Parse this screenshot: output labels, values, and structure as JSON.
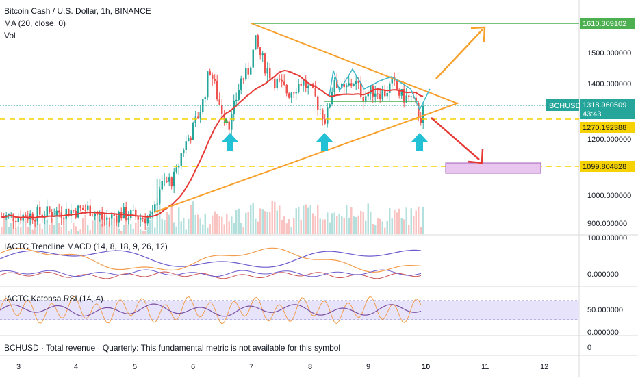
{
  "header": {
    "symbol_title": "Bitcoin Cash / U.S. Dollar, 1h, BINANCE",
    "ma_label": "MA (20, close, 0)",
    "vol_label": "Vol"
  },
  "panels": {
    "macd_title": "IACTC Trendline MACD (14, 8, 18, 9, 26, 12)",
    "rsi_title": "IACTC Katonsa RSI (14, 4)",
    "revenue_title": "BCHUSD · Total revenue · Quarterly: This fundamental metric is not available for this symbol"
  },
  "price_axis": {
    "ticks": [
      "1500.000000",
      "1400.000000",
      "1200.000000",
      "1000.000000",
      "900.000000"
    ],
    "levels": {
      "top": "1610.309102",
      "support": "1270.192388",
      "target": "1099.804828"
    },
    "current_symbol": "BCHUSD",
    "current_price": "1318.960509",
    "countdown": "43:43"
  },
  "macd_axis": {
    "ticks": [
      "100.000000",
      "0.000000"
    ]
  },
  "rsi_axis": {
    "ticks": [
      "50.000000",
      "0.000000"
    ]
  },
  "revenue_axis": {
    "ticks": [
      "0"
    ]
  },
  "time_axis": {
    "ticks": [
      "3",
      "4",
      "5",
      "6",
      "7",
      "8",
      "9",
      "10",
      "11",
      "12"
    ]
  },
  "colors": {
    "up": "#26a69a",
    "down": "#ef5350",
    "ma": "#e53935",
    "triangle": "#f7a02c",
    "level_green": "#4caf50",
    "level_yellow": "#f5d200",
    "arrow_cyan": "#22c1d6",
    "macd_line": "#6a5acd",
    "macd_signal": "#f39c4b",
    "rsi_band": "#e6e3fb"
  },
  "chart_data": {
    "type": "candlestick",
    "title": "Bitcoin Cash / U.S. Dollar, 1h, BINANCE",
    "ylim": [
      860,
      1650
    ],
    "x_ticks": [
      "3",
      "4",
      "5",
      "6",
      "7",
      "8",
      "9",
      "10",
      "11",
      "12"
    ],
    "horizontal_levels": [
      1610.309102,
      1270.192388,
      1099.804828
    ],
    "last_price": 1318.960509,
    "annotations": [
      "symmetrical triangle",
      "bullish arrow up",
      "bearish arrow down",
      "target box near 1099.80"
    ],
    "ma_period": 20
  }
}
